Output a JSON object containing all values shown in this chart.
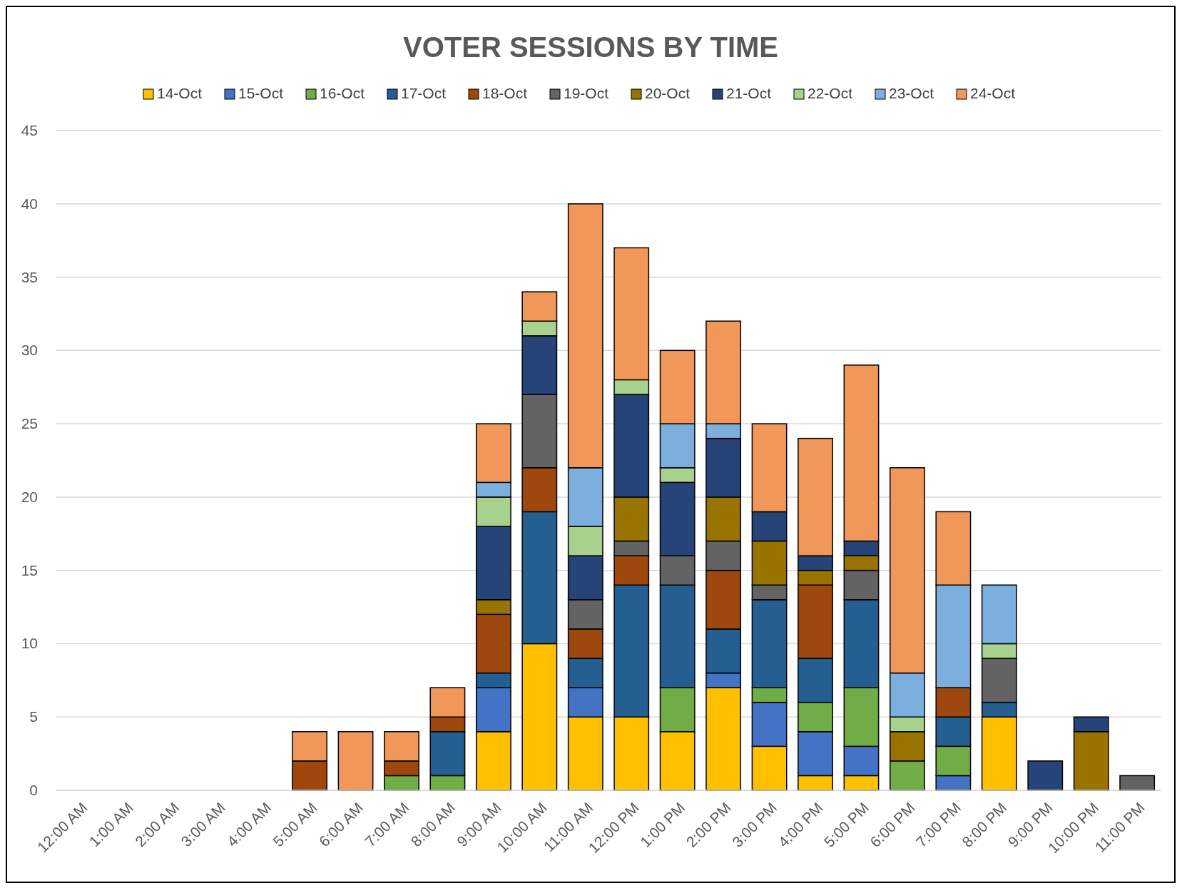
{
  "chart_data": {
    "type": "bar",
    "title": "VOTER SESSIONS BY TIME",
    "stacked": true,
    "legend": "top",
    "grid": "y",
    "ylim": [
      0,
      45
    ],
    "yticks": [
      0,
      5,
      10,
      15,
      20,
      25,
      30,
      35,
      40,
      45
    ],
    "categories": [
      "12:00 AM",
      "1:00 AM",
      "2:00 AM",
      "3:00 AM",
      "4:00 AM",
      "5:00 AM",
      "6:00 AM",
      "7:00 AM",
      "8:00 AM",
      "9:00 AM",
      "10:00 AM",
      "11:00 AM",
      "12:00 PM",
      "1:00 PM",
      "2:00 PM",
      "3:00 PM",
      "4:00 PM",
      "5:00 PM",
      "6:00 PM",
      "7:00 PM",
      "8:00 PM",
      "9:00 PM",
      "10:00 PM",
      "11:00 PM"
    ],
    "series": [
      {
        "name": "14-Oct",
        "color": "#ffc000",
        "values": [
          null,
          null,
          null,
          null,
          null,
          null,
          null,
          null,
          null,
          4,
          10,
          5,
          5,
          4,
          7,
          3,
          1,
          1,
          null,
          null,
          5,
          null,
          null,
          null
        ]
      },
      {
        "name": "15-Oct",
        "color": "#4472c4",
        "values": [
          null,
          null,
          null,
          null,
          null,
          null,
          null,
          null,
          null,
          3,
          null,
          2,
          null,
          null,
          1,
          3,
          3,
          2,
          null,
          1,
          null,
          null,
          null,
          null
        ]
      },
      {
        "name": "16-Oct",
        "color": "#70ad47",
        "values": [
          null,
          null,
          null,
          null,
          null,
          null,
          null,
          1,
          1,
          null,
          null,
          null,
          null,
          3,
          null,
          1,
          2,
          4,
          2,
          2,
          null,
          null,
          null,
          null
        ]
      },
      {
        "name": "17-Oct",
        "color": "#255e91",
        "values": [
          null,
          null,
          null,
          null,
          null,
          null,
          null,
          null,
          3,
          1,
          9,
          2,
          9,
          7,
          3,
          6,
          3,
          6,
          null,
          2,
          1,
          null,
          null,
          null
        ]
      },
      {
        "name": "18-Oct",
        "color": "#9e480e",
        "values": [
          null,
          null,
          null,
          null,
          null,
          2,
          null,
          1,
          1,
          4,
          3,
          2,
          2,
          null,
          4,
          null,
          5,
          null,
          null,
          2,
          null,
          null,
          null,
          null
        ]
      },
      {
        "name": "19-Oct",
        "color": "#636363",
        "values": [
          null,
          null,
          null,
          null,
          null,
          null,
          null,
          null,
          null,
          null,
          5,
          2,
          1,
          2,
          2,
          1,
          null,
          2,
          null,
          null,
          3,
          null,
          null,
          1
        ]
      },
      {
        "name": "20-Oct",
        "color": "#997300",
        "values": [
          null,
          null,
          null,
          null,
          null,
          null,
          null,
          null,
          null,
          1,
          null,
          null,
          3,
          null,
          3,
          3,
          1,
          1,
          2,
          null,
          null,
          null,
          4,
          null
        ]
      },
      {
        "name": "21-Oct",
        "color": "#264478",
        "values": [
          null,
          null,
          null,
          null,
          null,
          null,
          null,
          null,
          null,
          5,
          4,
          3,
          7,
          5,
          4,
          2,
          1,
          1,
          null,
          null,
          null,
          2,
          1,
          null
        ]
      },
      {
        "name": "22-Oct",
        "color": "#a9d18e",
        "values": [
          null,
          null,
          null,
          null,
          null,
          null,
          null,
          null,
          null,
          2,
          1,
          2,
          1,
          1,
          null,
          null,
          null,
          null,
          1,
          null,
          1,
          null,
          null,
          null
        ]
      },
      {
        "name": "23-Oct",
        "color": "#7cafdd",
        "values": [
          null,
          null,
          null,
          null,
          null,
          null,
          null,
          null,
          null,
          1,
          null,
          4,
          null,
          3,
          1,
          null,
          null,
          null,
          3,
          7,
          4,
          null,
          null,
          null
        ]
      },
      {
        "name": "24-Oct",
        "color": "#f1975a",
        "values": [
          null,
          null,
          null,
          null,
          null,
          2,
          4,
          2,
          2,
          4,
          2,
          18,
          9,
          5,
          7,
          6,
          8,
          12,
          14,
          5,
          null,
          null,
          null,
          null
        ]
      }
    ]
  }
}
